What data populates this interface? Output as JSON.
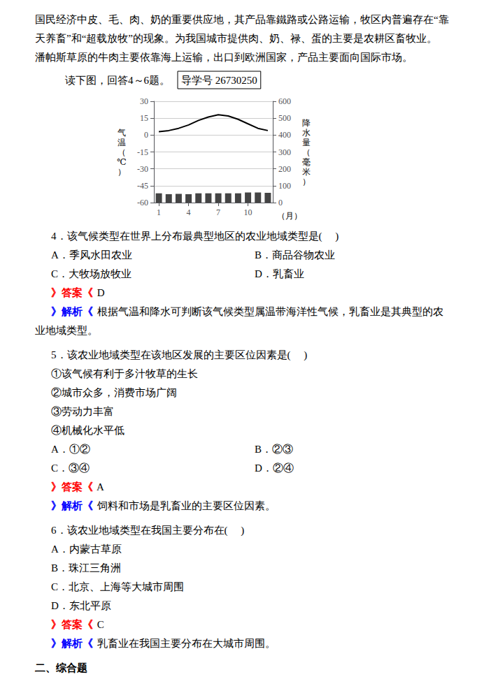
{
  "chart_data": {
    "type": "combo",
    "x": [
      1,
      2,
      3,
      4,
      5,
      6,
      7,
      8,
      9,
      10,
      11,
      12
    ],
    "xlim": [
      0.5,
      12.5
    ],
    "xticks": [
      1,
      4,
      7,
      10
    ],
    "ylim": [
      -60,
      30
    ],
    "yticks": [
      -60,
      -45,
      -30,
      -15,
      0,
      15,
      30
    ],
    "y2lim": [
      0,
      600
    ],
    "y2ticks": [
      0,
      100,
      200,
      300,
      400,
      500,
      600
    ],
    "xlabel": "（月）",
    "ylabel": "气温（℃）",
    "y2label": "降水量（毫米）",
    "grid": true,
    "series": [
      {
        "type": "line",
        "color": "#000000",
        "values": [
          3,
          4,
          6,
          9,
          13,
          16,
          18,
          17,
          14,
          10,
          6,
          4
        ]
      },
      {
        "type": "bar",
        "axis": "y2",
        "color": "#444444",
        "values": [
          55,
          50,
          52,
          50,
          55,
          55,
          55,
          55,
          55,
          60,
          60,
          58
        ]
      }
    ],
    "annotations": [
      [
        "国民经济中皮、毛、肉、奶的重要供应地，其产品靠鐵路或公路运输，牧区内普遍存在“靠"
      ],
      [
        "天养畜”和“超载放牧”的现象。为我国城市提供肉、奶、禄、蛋的主要是农耕区畜牧业。"
      ],
      [
        "潘帕斯草原的牛肉主要依靠海上运输，出口到欧洲国家，产品主要面向国际市场。"
      ],
      [
        "读下图，回答4～6题。",
        "导学号 26730250"
      ],
      [
        "4．该气候类型在世界上分布最典型地区的农业地域类型是(     )"
      ],
      [
        "A．季风水田农业",
        "B．商品谷物农业"
      ],
      [
        "C．大牧场放牧业",
        "D．乳畜业"
      ],
      [
        {
          "text": "》答案《",
          "color": "#ff0000"
        },
        " D"
      ],
      [
        {
          "text": "》解析《",
          "color": "#0000ff"
        },
        " 根据气温和降水可判断该气候类型属温带海洋性气候，乳畜业是其典型的农"
      ],
      [
        "业地域类型。"
      ],
      [
        "5．该农业地域类型在该地区发展的主要区位因素是(     )"
      ],
      [
        "①该气候有利于多汁牧草的生长"
      ],
      [
        "②城市众多，消费市场广阔"
      ],
      [
        "③劳动力丰富"
      ],
      [
        "④机械化水平低"
      ],
      [
        "A．①②",
        "B．②③"
      ],
      [
        "C．③④",
        "D．②④"
      ],
      [
        {
          "text": "》答案《",
          "color": "#ff0000"
        },
        " A"
      ],
      [
        {
          "text": "》解析《",
          "color": "#0000ff"
        },
        " 饲料和市场是乳畜业的主要区位因素。"
      ],
      [
        "6．该农业地域类型在我国主要分布在(     )"
      ],
      [
        "A．内蒙古草原"
      ],
      [
        "B．珠江三角洲"
      ],
      [
        "C．北京、上海等大城市周围"
      ],
      [
        "D．东北平原"
      ],
      [
        {
          "text": "》答案《",
          "color": "#ff0000"
        },
        " C"
      ],
      [
        {
          "text": "》解析《",
          "color": "#0000ff"
        },
        " 乳畜业在我国主要分布在大城市周围。"
      ],
      [
        "二、综合题"
      ]
    ]
  }
}
